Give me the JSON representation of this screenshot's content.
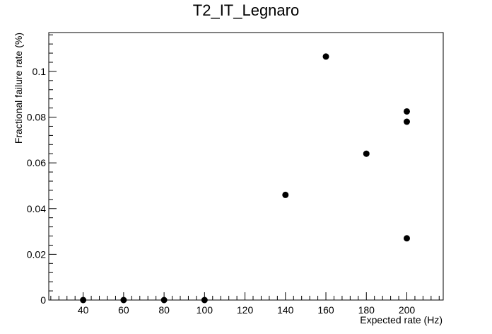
{
  "chart_data": {
    "type": "scatter",
    "title": "T2_IT_Legnaro",
    "xlabel": "Expected rate (Hz)",
    "ylabel": "Fractional failure rate (%)",
    "xlim": [
      23,
      218
    ],
    "ylim": [
      0,
      0.117
    ],
    "x_ticks": [
      40,
      60,
      80,
      100,
      120,
      140,
      160,
      180,
      200
    ],
    "y_ticks": [
      0,
      0.02,
      0.04,
      0.06,
      0.08,
      0.1
    ],
    "grid": false,
    "legend": "none",
    "marker_color": "#000000",
    "points": [
      {
        "x": 40,
        "y": 0
      },
      {
        "x": 60,
        "y": 0
      },
      {
        "x": 80,
        "y": 0
      },
      {
        "x": 100,
        "y": 0
      },
      {
        "x": 140,
        "y": 0.046
      },
      {
        "x": 160,
        "y": 0.1065
      },
      {
        "x": 180,
        "y": 0.064
      },
      {
        "x": 200,
        "y": 0.0825
      },
      {
        "x": 200,
        "y": 0.078
      },
      {
        "x": 200,
        "y": 0.027
      }
    ]
  }
}
